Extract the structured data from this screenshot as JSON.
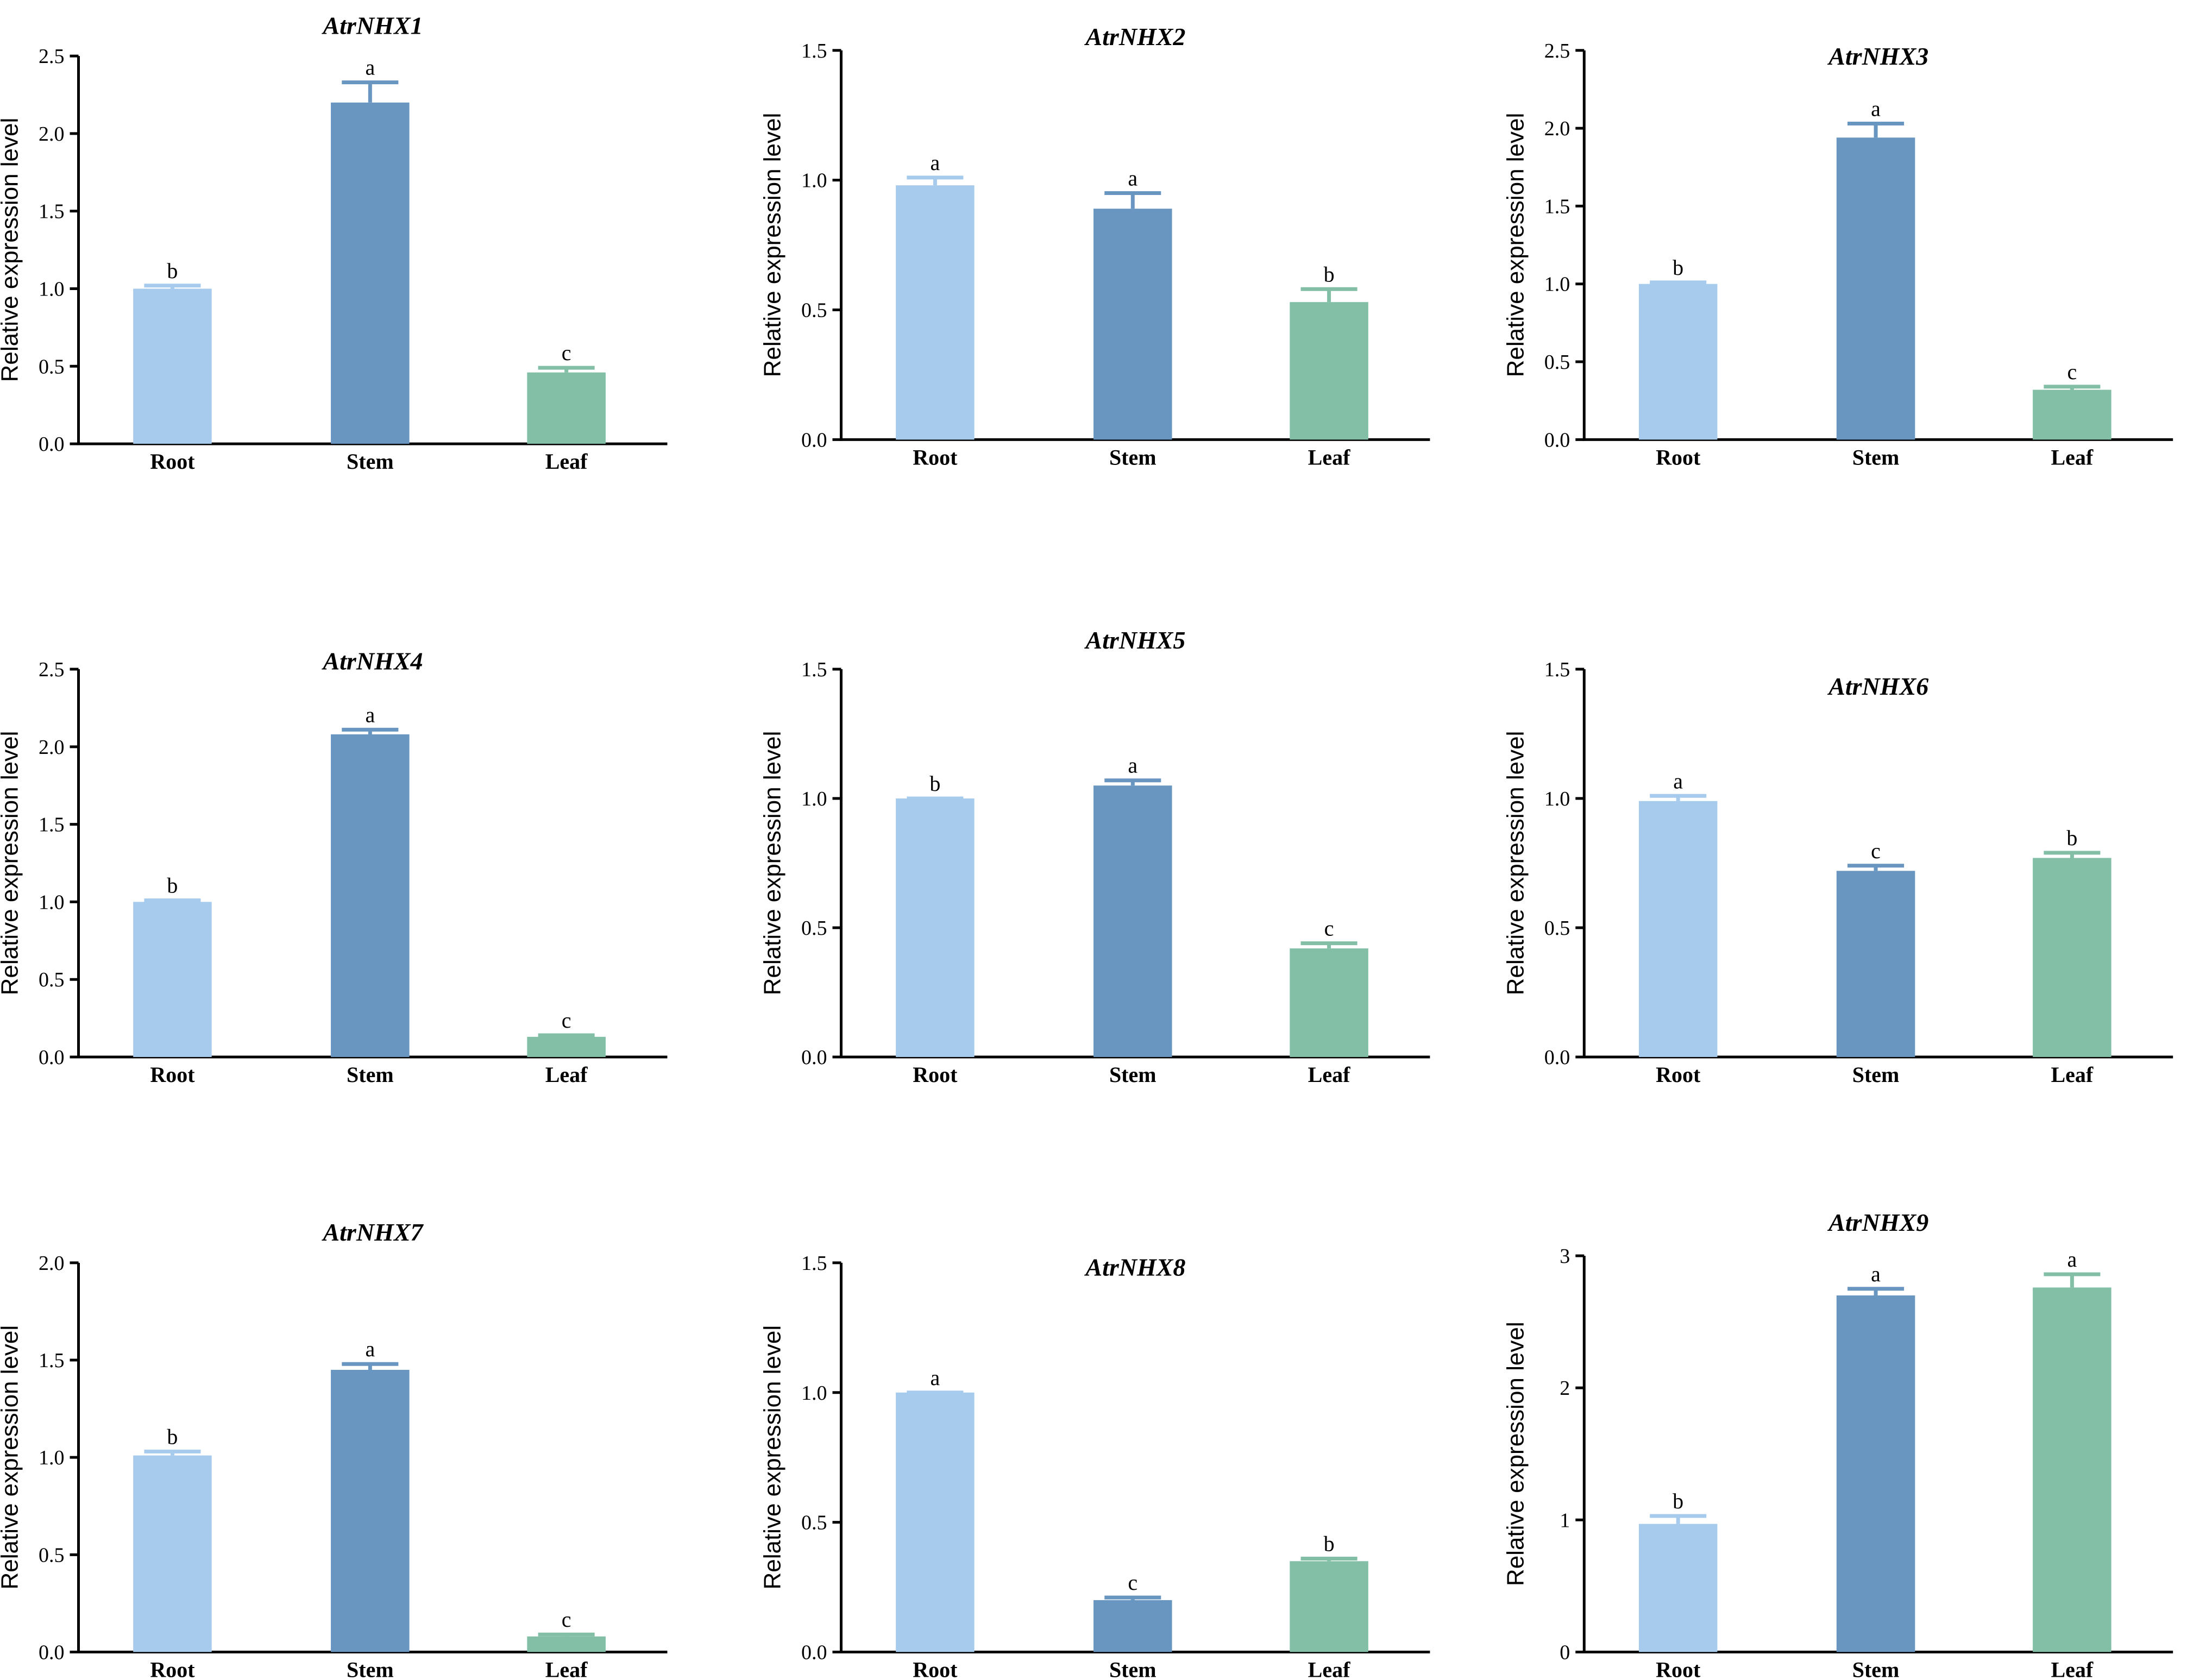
{
  "chart_data": [
    {
      "type": "bar",
      "title": "AtrNHX1",
      "categories": [
        "Root",
        "Stem",
        "Leaf"
      ],
      "values": [
        1.0,
        2.2,
        0.46
      ],
      "errors": [
        0.02,
        0.13,
        0.03
      ],
      "letters": [
        "b",
        "a",
        "c"
      ],
      "ylabel": "Relative expression level",
      "ylim": [
        0,
        2.5
      ],
      "yticks": [
        "0.0",
        "0.5",
        "1.0",
        "1.5",
        "2.0",
        "2.5"
      ],
      "colors": [
        "#a7cbed",
        "#6896c0",
        "#82bfa6"
      ]
    },
    {
      "type": "bar",
      "title": "AtrNHX2",
      "categories": [
        "Root",
        "Stem",
        "Leaf"
      ],
      "values": [
        0.98,
        0.89,
        0.53
      ],
      "errors": [
        0.03,
        0.06,
        0.05
      ],
      "letters": [
        "a",
        "a",
        "b"
      ],
      "ylabel": "Relative expression level",
      "ylim": [
        0,
        1.5
      ],
      "yticks": [
        "0.0",
        "0.5",
        "1.0",
        "1.5"
      ],
      "colors": [
        "#a7cbed",
        "#6896c0",
        "#82bfa6"
      ]
    },
    {
      "type": "bar",
      "title": "AtrNHX3",
      "categories": [
        "Root",
        "Stem",
        "Leaf"
      ],
      "values": [
        1.0,
        1.94,
        0.32
      ],
      "errors": [
        0.01,
        0.09,
        0.02
      ],
      "letters": [
        "b",
        "a",
        "c"
      ],
      "ylabel": "Relative expression level",
      "ylim": [
        0,
        2.5
      ],
      "yticks": [
        "0.0",
        "0.5",
        "1.0",
        "1.5",
        "2.0",
        "2.5"
      ],
      "colors": [
        "#a7cbed",
        "#6896c0",
        "#82bfa6"
      ]
    },
    {
      "type": "bar",
      "title": "AtrNHX4",
      "categories": [
        "Root",
        "Stem",
        "Leaf"
      ],
      "values": [
        1.0,
        2.08,
        0.13
      ],
      "errors": [
        0.01,
        0.03,
        0.01
      ],
      "letters": [
        "b",
        "a",
        "c"
      ],
      "ylabel": "Relative expression level",
      "ylim": [
        0,
        2.5
      ],
      "yticks": [
        "0.0",
        "0.5",
        "1.0",
        "1.5",
        "2.0",
        "2.5"
      ],
      "colors": [
        "#a7cbed",
        "#6896c0",
        "#82bfa6"
      ]
    },
    {
      "type": "bar",
      "title": "AtrNHX5",
      "categories": [
        "Root",
        "Stem",
        "Leaf"
      ],
      "values": [
        1.0,
        1.05,
        0.42
      ],
      "errors": [
        0.0,
        0.02,
        0.02
      ],
      "letters": [
        "b",
        "a",
        "c"
      ],
      "ylabel": "Relative expression level",
      "ylim": [
        0,
        1.5
      ],
      "yticks": [
        "0.0",
        "0.5",
        "1.0",
        "1.5"
      ],
      "colors": [
        "#a7cbed",
        "#6896c0",
        "#82bfa6"
      ]
    },
    {
      "type": "bar",
      "title": "AtrNHX6",
      "categories": [
        "Root",
        "Stem",
        "Leaf"
      ],
      "values": [
        0.99,
        0.72,
        0.77
      ],
      "errors": [
        0.02,
        0.02,
        0.02
      ],
      "letters": [
        "a",
        "c",
        "b"
      ],
      "ylabel": "Relative expression level",
      "ylim": [
        0,
        1.5
      ],
      "yticks": [
        "0.0",
        "0.5",
        "1.0",
        "1.5"
      ],
      "colors": [
        "#a7cbed",
        "#6896c0",
        "#82bfa6"
      ]
    },
    {
      "type": "bar",
      "title": "AtrNHX7",
      "categories": [
        "Root",
        "Stem",
        "Leaf"
      ],
      "values": [
        1.01,
        1.45,
        0.08
      ],
      "errors": [
        0.02,
        0.03,
        0.01
      ],
      "letters": [
        "b",
        "a",
        "c"
      ],
      "ylabel": "Relative expression level",
      "ylim": [
        0,
        2.0
      ],
      "yticks": [
        "0.0",
        "0.5",
        "1.0",
        "1.5",
        "2.0"
      ],
      "colors": [
        "#a7cbed",
        "#6896c0",
        "#82bfa6"
      ]
    },
    {
      "type": "bar",
      "title": "AtrNHX8",
      "categories": [
        "Root",
        "Stem",
        "Leaf"
      ],
      "values": [
        1.0,
        0.2,
        0.35
      ],
      "errors": [
        0.0,
        0.01,
        0.01
      ],
      "letters": [
        "a",
        "c",
        "b"
      ],
      "ylabel": "Relative expression level",
      "ylim": [
        0,
        1.5
      ],
      "yticks": [
        "0.0",
        "0.5",
        "1.0",
        "1.5"
      ],
      "colors": [
        "#a7cbed",
        "#6896c0",
        "#82bfa6"
      ]
    },
    {
      "type": "bar",
      "title": "AtrNHX9",
      "categories": [
        "Root",
        "Stem",
        "Leaf"
      ],
      "values": [
        0.97,
        2.7,
        2.76
      ],
      "errors": [
        0.06,
        0.05,
        0.1
      ],
      "letters": [
        "b",
        "a",
        "a"
      ],
      "ylabel": "Relative expression level",
      "ylim": [
        0,
        3
      ],
      "yticks": [
        "0",
        "1",
        "2",
        "3"
      ],
      "colors": [
        "#a7cbed",
        "#6896c0",
        "#82bfa6"
      ]
    }
  ]
}
